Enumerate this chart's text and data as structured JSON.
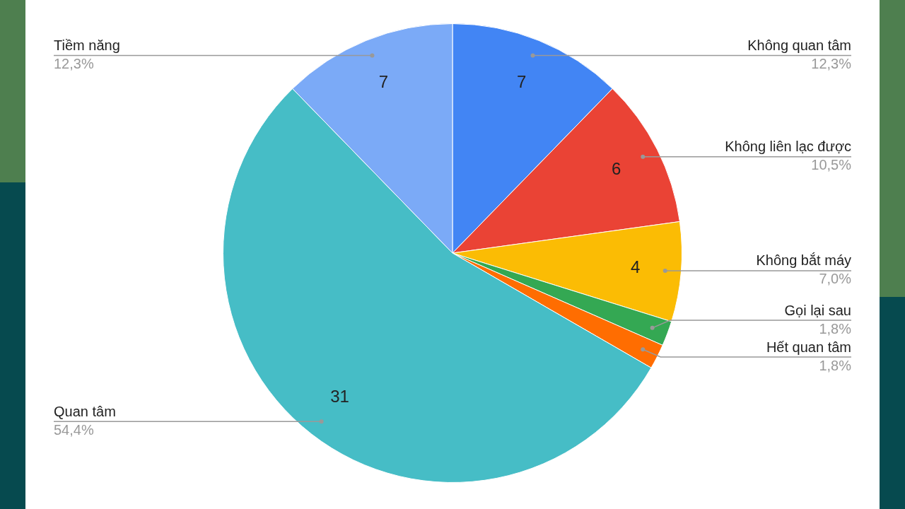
{
  "chart_data": {
    "type": "pie",
    "categories": [
      "Không quan tâm",
      "Không liên lạc được",
      "Không bắt máy",
      "Gọi lại sau",
      "Hết quan tâm",
      "Quan tâm",
      "Tiềm năng"
    ],
    "values": [
      7,
      6,
      4,
      1,
      1,
      31,
      7
    ],
    "colors": [
      "#4285f4",
      "#ea4335",
      "#fbbc04",
      "#34a853",
      "#ff6d01",
      "#46bdc6",
      "#7baaf7"
    ],
    "value_labels": [
      "7",
      "6",
      "4",
      null,
      null,
      "31",
      "7"
    ],
    "annotations": [
      {
        "text": "12,3%",
        "x": "Không quan tâm"
      },
      {
        "text": "10,5%",
        "x": "Không liên lạc được"
      },
      {
        "text": "7,0%",
        "x": "Không bắt máy"
      },
      {
        "text": "1,8%",
        "x": "Gọi lại sau"
      },
      {
        "text": "1,8%",
        "x": "Hết quan tâm"
      },
      {
        "text": "54,4%",
        "x": "Quan tâm"
      },
      {
        "text": "12,3%",
        "x": "Tiềm năng"
      }
    ]
  }
}
